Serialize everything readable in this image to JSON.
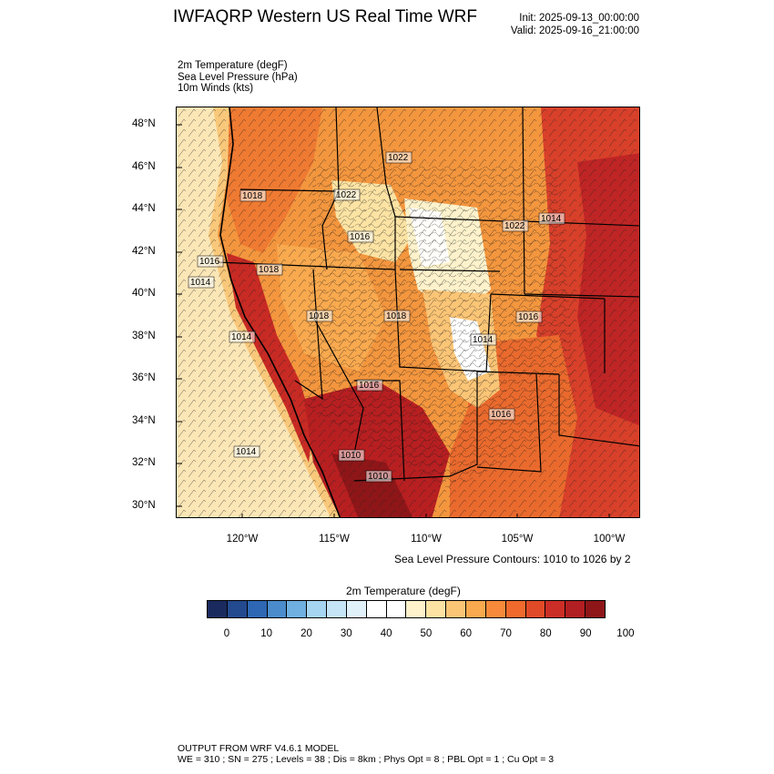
{
  "header": {
    "title": "IWFAQRP Western US Real Time WRF",
    "init": "Init: 2025-09-13_00:00:00",
    "valid": "Valid: 2025-09-16_21:00:00"
  },
  "fields": [
    "2m Temperature   (degF)",
    "Sea Level Pressure   (hPa)",
    "10m Winds   (kts)"
  ],
  "map": {
    "lat_labels": [
      "48°N",
      "46°N",
      "44°N",
      "42°N",
      "40°N",
      "38°N",
      "36°N",
      "34°N",
      "32°N",
      "30°N"
    ],
    "lon_labels": [
      "120°W",
      "115°W",
      "110°W",
      "105°W",
      "100°W"
    ],
    "slp_labels": [
      "1022",
      "1018",
      "1022",
      "1014",
      "1022",
      "1016",
      "1016",
      "1018",
      "1014",
      "1018",
      "1018",
      "1016",
      "1014",
      "1014",
      "1016",
      "1016",
      "1014",
      "1010",
      "1010"
    ],
    "contour_note": "Sea Level Pressure Contours: 1010 to 1026 by 2"
  },
  "colorbar": {
    "title": "2m Temperature  (degF)",
    "ticks": [
      "0",
      "10",
      "20",
      "30",
      "40",
      "50",
      "60",
      "70",
      "80",
      "90",
      "100"
    ],
    "colors": [
      "#1a2a5e",
      "#234a8f",
      "#2e67b3",
      "#4a8ccc",
      "#6fb0e0",
      "#a6d5f2",
      "#c5e4f5",
      "#e1f1fa",
      "#ffffff",
      "#ffffff",
      "#fdf2cb",
      "#fde3a3",
      "#fbc576",
      "#f9a94e",
      "#f68a3a",
      "#ef6a2c",
      "#e04a27",
      "#cb2e26",
      "#b21f22",
      "#8e1618"
    ]
  },
  "footer": {
    "line1": "OUTPUT FROM WRF V4.6.1 MODEL",
    "line2": "WE = 310 ; SN = 275 ; Levels = 38 ; Dis = 8km ; Phys Opt = 8 ; PBL Opt = 1 ; Cu Opt = 3"
  }
}
